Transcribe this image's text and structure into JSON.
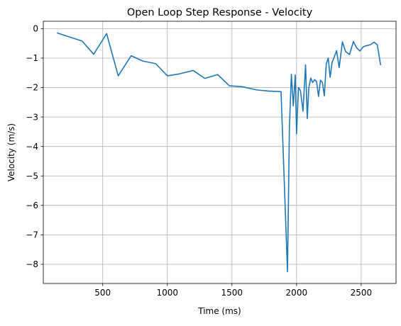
{
  "chart_data": {
    "type": "line",
    "title": "Open Loop Step Response - Velocity",
    "xlabel": "Time (ms)",
    "ylabel": "Velocity (m/s)",
    "xlim": [
      40,
      2770
    ],
    "ylim": [
      -8.65,
      0.25
    ],
    "xticks": [
      500,
      1000,
      1500,
      2000,
      2500
    ],
    "yticks": [
      0,
      -1,
      -2,
      -3,
      -4,
      -5,
      -6,
      -7,
      -8
    ],
    "xtick_labels": [
      "500",
      "1000",
      "1500",
      "2000",
      "2500"
    ],
    "ytick_labels": [
      "0",
      "−1",
      "−2",
      "−3",
      "−4",
      "−5",
      "−6",
      "−7",
      "−8"
    ],
    "grid": true,
    "colors": {
      "series": "#1f77b4",
      "grid": "#b0b0b0",
      "axes": "#000000"
    },
    "series": [
      {
        "x": [
          150,
          240,
          340,
          430,
          530,
          620,
          720,
          810,
          910,
          1000,
          1090,
          1200,
          1290,
          1390,
          1480,
          1580,
          1690,
          1790,
          1880,
          1930,
          1945,
          1960,
          1975,
          1990,
          2000,
          2015,
          2030,
          2050,
          2070,
          2083,
          2095,
          2110,
          2125,
          2140,
          2155,
          2170,
          2185,
          2200,
          2215,
          2230,
          2245,
          2260,
          2275,
          2290,
          2310,
          2330,
          2355,
          2380,
          2410,
          2440,
          2465,
          2490,
          2515,
          2540,
          2570,
          2600,
          2625,
          2650
        ],
        "y": [
          -0.15,
          -0.28,
          -0.42,
          -0.87,
          -0.17,
          -1.6,
          -0.92,
          -1.1,
          -1.19,
          -1.6,
          -1.54,
          -1.42,
          -1.69,
          -1.56,
          -1.94,
          -1.97,
          -2.08,
          -2.12,
          -2.14,
          -8.25,
          -3.3,
          -1.55,
          -2.62,
          -1.57,
          -3.57,
          -2.0,
          -2.1,
          -2.8,
          -1.23,
          -3.05,
          -2.0,
          -1.68,
          -1.83,
          -1.73,
          -1.8,
          -2.3,
          -1.75,
          -1.82,
          -2.28,
          -1.2,
          -1.0,
          -1.65,
          -1.15,
          -0.98,
          -0.75,
          -1.32,
          -0.45,
          -0.78,
          -0.88,
          -0.44,
          -0.65,
          -0.76,
          -0.62,
          -0.58,
          -0.55,
          -0.46,
          -0.55,
          -1.22
        ]
      }
    ]
  }
}
